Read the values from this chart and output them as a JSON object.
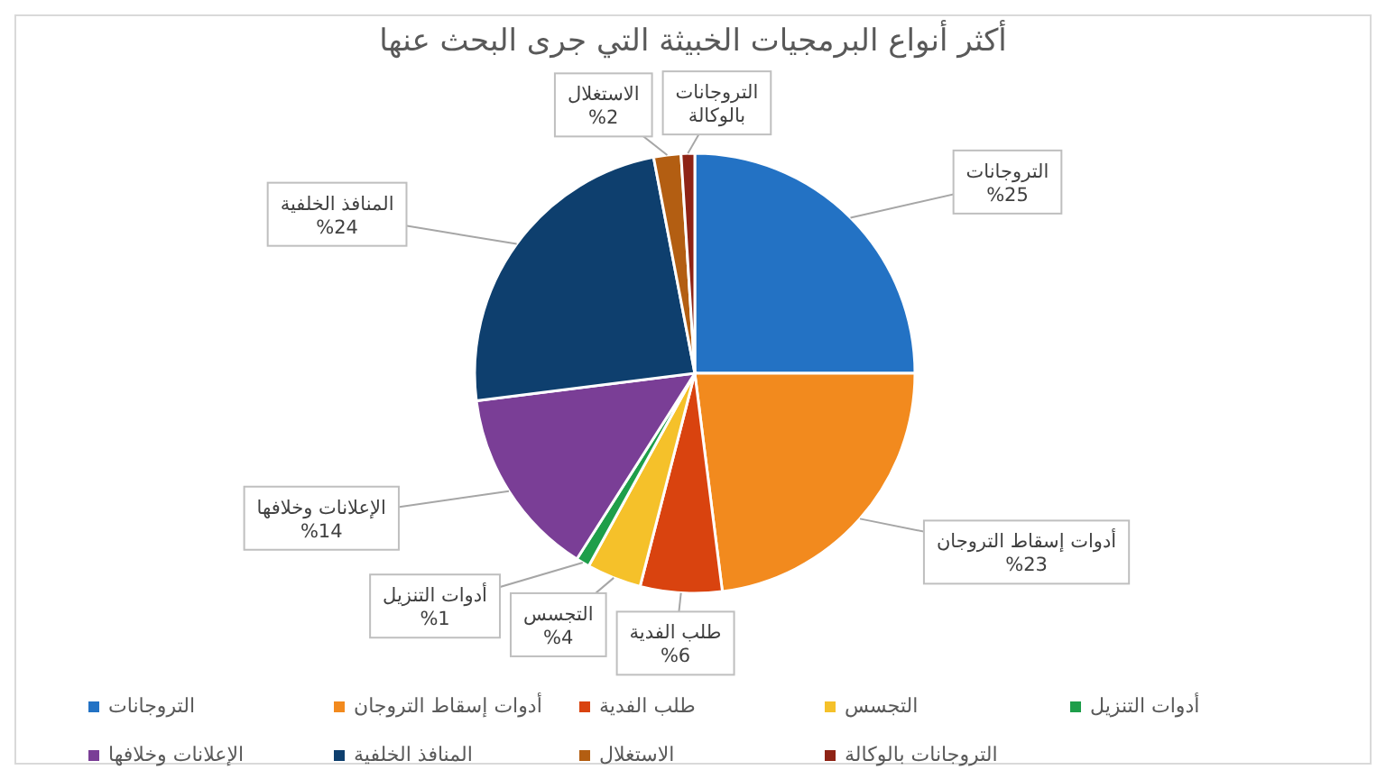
{
  "chart_data": {
    "type": "pie",
    "title": "أكثر أنواع البرمجيات الخبيثة التي جرى البحث عنها",
    "categories": [
      "التروجانات",
      "أدوات إسقاط التروجان",
      "طلب الفدية",
      "التجسس",
      "أدوات التنزيل",
      "الإعلانات وخلافها",
      "المنافذ الخلفية",
      "الاستغلال",
      "التروجانات بالوكالة"
    ],
    "values": [
      25,
      23,
      6,
      4,
      1,
      14,
      24,
      2,
      1
    ],
    "colors": [
      "#2372c4",
      "#f28a1e",
      "#d9430f",
      "#f5c12a",
      "#1e9e4a",
      "#7a3e96",
      "#0e3f6e",
      "#b35e12",
      "#8e2315"
    ],
    "value_labels": [
      "%25",
      "%23",
      "%6",
      "%4",
      "%1",
      "%14",
      "%24",
      "%2",
      null
    ],
    "legend": "bottom"
  }
}
